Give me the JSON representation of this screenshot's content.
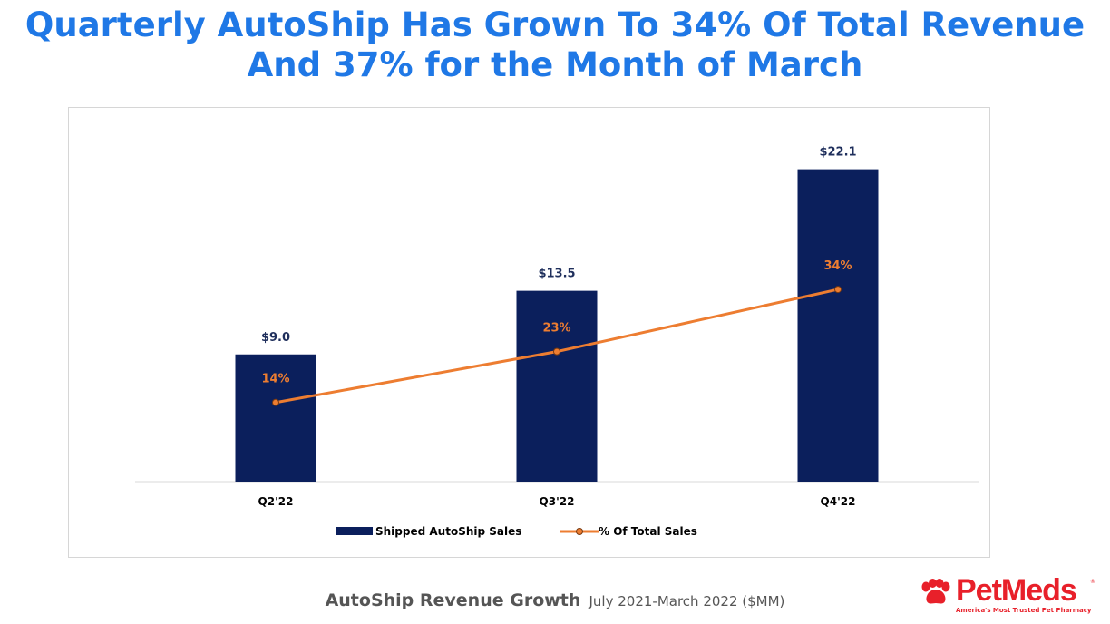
{
  "title": {
    "line1": "Quarterly AutoShip Has Grown To 34% Of Total Revenue",
    "line2": "And 37% for the Month of March"
  },
  "chart_data": {
    "type": "bar",
    "categories": [
      "Q2'22",
      "Q3'22",
      "Q4'22"
    ],
    "series": [
      {
        "name": "Shipped AutoShip Sales",
        "kind": "bar",
        "values": [
          9.0,
          13.5,
          22.1
        ],
        "labels": [
          "$9.0",
          "$13.5",
          "$22.1"
        ],
        "color": "#0b1f5c"
      },
      {
        "name": "% Of Total Sales",
        "kind": "line",
        "values": [
          14,
          23,
          34
        ],
        "labels": [
          "14%",
          "23%",
          "34%"
        ],
        "color": "#ed7d31"
      }
    ],
    "ylim": [
      0,
      24
    ],
    "pct_ylim": [
      0,
      60
    ],
    "grid": false,
    "legend": "bottom"
  },
  "footer": {
    "main": "AutoShip Revenue Growth",
    "sub": "July 2021-March 2022 ($MM)"
  },
  "logo": {
    "brand": "PetMeds",
    "tm": "®",
    "tagline": "America's Most Trusted Pet Pharmacy",
    "color": "#e8202a"
  }
}
